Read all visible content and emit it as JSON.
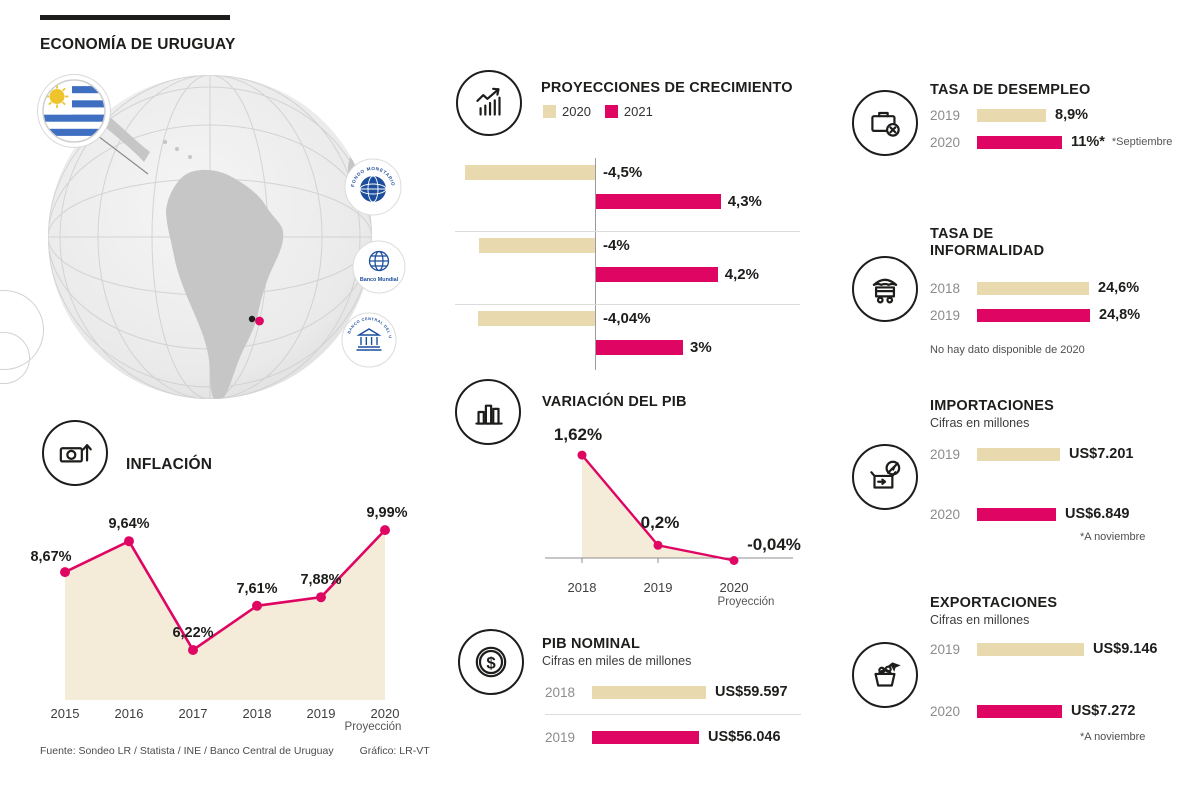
{
  "meta": {
    "title": "ECONOMÍA DE URUGUAY",
    "source": "Fuente: Sondeo LR / Statista / INE / Banco Central de Uruguay",
    "credit": "Gráfico: LR-VT"
  },
  "colors": {
    "ink": "#1d1d1b",
    "beige": "#e8d9af",
    "pink": "#df0663",
    "area": "#f4ecd9",
    "logo_blue": "#1c4e9d"
  },
  "logos": {
    "imf": "FONDO MONETARIO INTERNACIONAL",
    "world_bank": "Banco Mundial",
    "central_bank": "BANCO CENTRAL DEL URUGUAY"
  },
  "chart_data": [
    {
      "id": "proyecciones-crecimiento",
      "type": "bar",
      "title": "PROYECCIONES DE CRECIMIENTO",
      "unit": "%",
      "legend": [
        {
          "label": "2020",
          "color": "#e8d9af"
        },
        {
          "label": "2021",
          "color": "#df0663"
        }
      ],
      "groups": [
        {
          "bars": [
            {
              "series": "2020",
              "value": -4.5,
              "label": "-4,5%"
            },
            {
              "series": "2021",
              "value": 4.3,
              "label": "4,3%"
            }
          ]
        },
        {
          "bars": [
            {
              "series": "2020",
              "value": -4.0,
              "label": "-4%"
            },
            {
              "series": "2021",
              "value": 4.2,
              "label": "4,2%"
            }
          ]
        },
        {
          "bars": [
            {
              "series": "2020",
              "value": -4.04,
              "label": "-4,04%"
            },
            {
              "series": "2021",
              "value": 3.0,
              "label": "3%"
            }
          ]
        }
      ]
    },
    {
      "id": "variacion-pib",
      "type": "line",
      "title": "VARIACIÓN DEL PIB",
      "categories": [
        "2018",
        "2019",
        "2020"
      ],
      "x_sub": "Proyección",
      "values": [
        1.62,
        0.2,
        -0.04
      ],
      "labels": [
        "1,62%",
        "0,2%",
        "-0,04%"
      ]
    },
    {
      "id": "pib-nominal",
      "type": "bar",
      "title": "PIB NOMINAL",
      "subtitle": "Cifras en miles de millones",
      "rows": [
        {
          "year": "2018",
          "value": 59.597,
          "label": "US$59.597",
          "color": "beige"
        },
        {
          "year": "2019",
          "value": 56.046,
          "label": "US$56.046",
          "color": "pink"
        }
      ]
    },
    {
      "id": "tasa-desempleo",
      "type": "bar",
      "title": "TASA DE DESEMPLEO",
      "rows": [
        {
          "year": "2019",
          "value": 8.9,
          "label": "8,9%",
          "color": "beige"
        },
        {
          "year": "2020",
          "value": 11,
          "label": "11%*",
          "color": "pink",
          "note": "*Septiembre"
        }
      ]
    },
    {
      "id": "tasa-informalidad",
      "type": "bar",
      "title": "TASA DE\nINFORMALIDAD",
      "rows": [
        {
          "year": "2018",
          "value": 24.6,
          "label": "24,6%",
          "color": "beige"
        },
        {
          "year": "2019",
          "value": 24.8,
          "label": "24,8%",
          "color": "pink"
        }
      ],
      "footnote": "No hay dato disponible de 2020"
    },
    {
      "id": "importaciones",
      "type": "bar",
      "title": "IMPORTACIONES",
      "subtitle": "Cifras en millones",
      "rows": [
        {
          "year": "2019",
          "value": 7201,
          "label": "US$7.201",
          "color": "beige"
        },
        {
          "year": "2020",
          "value": 6849,
          "label": "US$6.849",
          "color": "pink"
        }
      ],
      "footnote": "*A noviembre"
    },
    {
      "id": "exportaciones",
      "type": "bar",
      "title": "EXPORTACIONES",
      "subtitle": "Cifras en millones",
      "rows": [
        {
          "year": "2019",
          "value": 9146,
          "label": "US$9.146",
          "color": "beige"
        },
        {
          "year": "2020",
          "value": 7272,
          "label": "US$7.272",
          "color": "pink"
        }
      ],
      "footnote": "*A noviembre"
    },
    {
      "id": "inflacion",
      "type": "line",
      "title": "INFLACIÓN",
      "categories": [
        "2015",
        "2016",
        "2017",
        "2018",
        "2019",
        "2020"
      ],
      "x_sub": "Proyección",
      "values": [
        8.67,
        9.64,
        6.22,
        7.61,
        7.88,
        9.99
      ],
      "labels": [
        "8,67%",
        "9,64%",
        "6,22%",
        "7,61%",
        "7,88%",
        "9,99%"
      ]
    }
  ]
}
